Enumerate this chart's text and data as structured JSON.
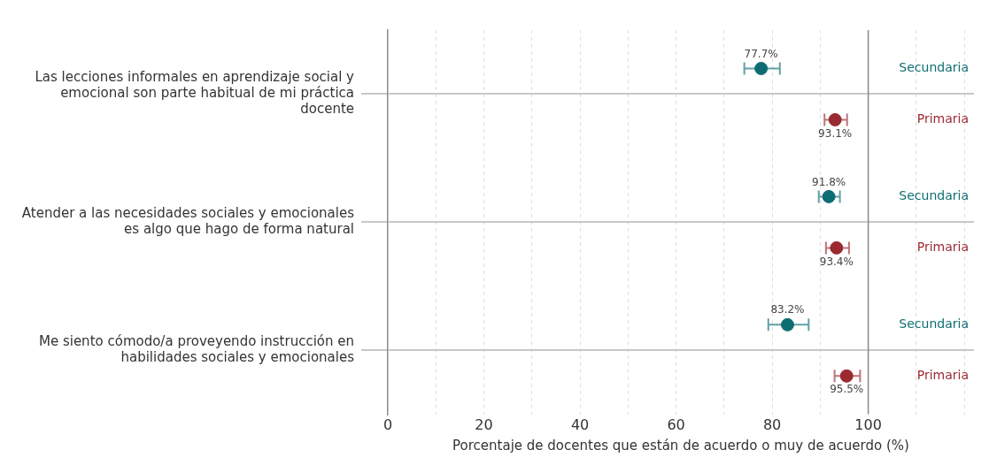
{
  "chart_data": {
    "type": "scatter",
    "orientation": "horizontal",
    "xlabel": "Porcentaje de docentes que están de acuerdo o muy de acuerdo (%)",
    "categories": [
      "Las lecciones informales en aprendizaje social y emocional son parte habitual de mi práctica docente",
      "Atender a las necesidades sociales y emocionales es algo que hago de forma natural",
      "Me siento cómodo/a proveyendo instrucción en habilidades sociales y emocionales"
    ],
    "series": [
      {
        "name": "Secundaria",
        "color": "#0e6d73",
        "values": [
          77.7,
          91.8,
          83.2
        ],
        "errors": [
          [
            74.2,
            81.6
          ],
          [
            89.7,
            94.1
          ],
          [
            79.2,
            87.6
          ]
        ],
        "value_labels": [
          "77.7%",
          "91.8%",
          "83.2%"
        ]
      },
      {
        "name": "Primaria",
        "color": "#9b2a30",
        "values": [
          93.1,
          93.4,
          95.5
        ],
        "errors": [
          [
            90.9,
            95.6
          ],
          [
            91.2,
            96.0
          ],
          [
            93.0,
            98.3
          ]
        ],
        "value_labels": [
          "93.1%",
          "93.4%",
          "95.5%"
        ]
      }
    ],
    "xlim": [
      0,
      122
    ],
    "xticks": [
      0,
      {
        "value": 10,
        "label": null
      },
      20,
      {
        "value": 30,
        "label": null
      },
      40,
      {
        "value": 50,
        "label": null
      },
      60,
      {
        "value": 70,
        "label": null
      },
      80,
      {
        "value": 90,
        "label": null
      },
      100,
      {
        "value": 110,
        "label": null
      },
      {
        "value": 120,
        "label": null
      }
    ],
    "ref_lines": [
      {
        "axis": "x",
        "value": 100,
        "color": "#8a8a8a"
      }
    ],
    "grid": true,
    "legend": false,
    "marker": "circle"
  }
}
